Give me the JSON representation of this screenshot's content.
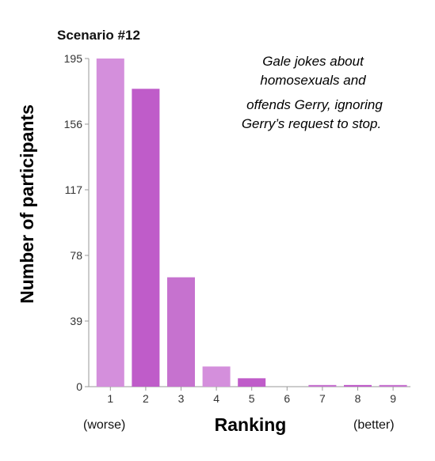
{
  "chart_data": {
    "type": "bar",
    "title": "Scenario #12",
    "annotation": [
      "Gale jokes about",
      "homosexuals and",
      "offends Gerry, ignoring",
      "Gerry’s request to stop."
    ],
    "ylabel": "Number of participants",
    "xlabel": "Ranking",
    "x_left_note": "(worse)",
    "x_right_note": "(better)",
    "categories": [
      "1",
      "2",
      "3",
      "4",
      "5",
      "6",
      "7",
      "8",
      "9"
    ],
    "values": [
      195,
      177,
      65,
      12,
      5,
      0,
      1,
      1,
      1
    ],
    "yticks": [
      "0",
      "39",
      "78",
      "117",
      "156",
      "195"
    ],
    "ylim": [
      0,
      195
    ],
    "grid": false,
    "bar_colors": [
      "#d48fdc",
      "#bf5cc9",
      "#c672cf",
      "#d48fdc",
      "#bf5cc9",
      "#d48fdc",
      "#c672cf",
      "#bf5cc9",
      "#c672cf"
    ]
  }
}
